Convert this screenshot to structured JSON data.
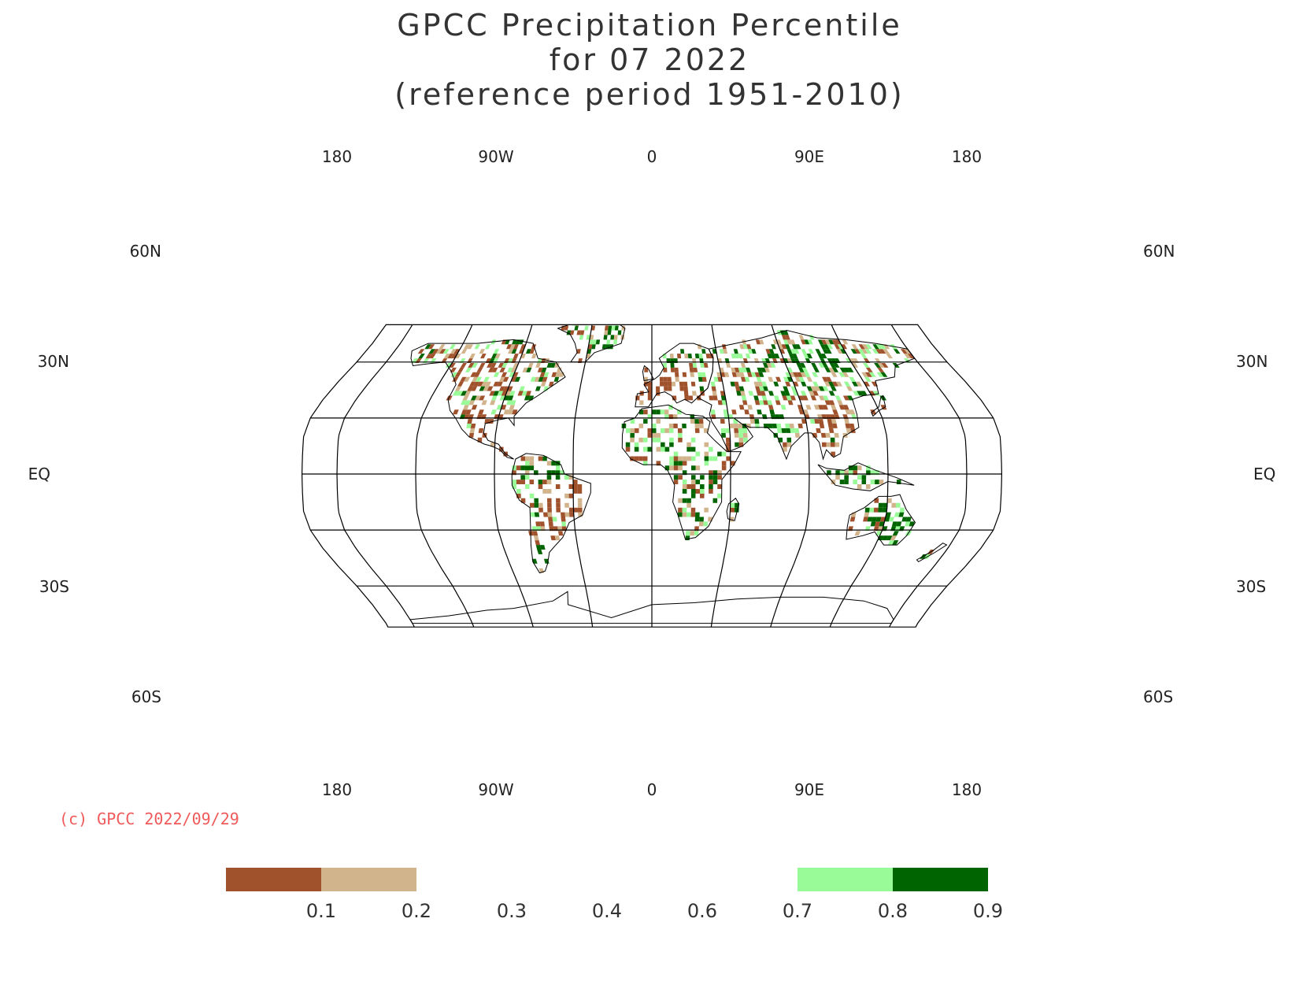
{
  "title": {
    "line1": "GPCC Precipitation Percentile",
    "line2": "for 07 2022",
    "line3": "(reference period 1951-2010)"
  },
  "copyright": "(c) GPCC 2022/09/29",
  "map": {
    "projection": "robinson",
    "lon_labels_top": [
      "180",
      "90W",
      "0",
      "90E",
      "180"
    ],
    "lon_labels_bottom": [
      "180",
      "90W",
      "0",
      "90E",
      "180"
    ],
    "lat_labels_left": [
      "60N",
      "30N",
      "EQ",
      "30S",
      "60S"
    ],
    "lat_labels_right": [
      "60N",
      "30N",
      "EQ",
      "30S",
      "60S"
    ],
    "central_longitude": 0,
    "lon_range": [
      -200,
      200
    ]
  },
  "legend": {
    "tick_labels": [
      "0.1",
      "0.2",
      "0.3",
      "0.4",
      "0.6",
      "0.7",
      "0.8",
      "0.9"
    ],
    "colors": [
      "#a0522d",
      "#d2b48c",
      "#ffffff",
      "#ffffff",
      "#ffffff",
      "#ffffff",
      "#98fb98",
      "#006400"
    ]
  },
  "colors": {
    "very_dry": "#a0522d",
    "dry": "#d2b48c",
    "wet": "#98fb98",
    "very_wet": "#006400",
    "copyright": "#f05a5a"
  }
}
